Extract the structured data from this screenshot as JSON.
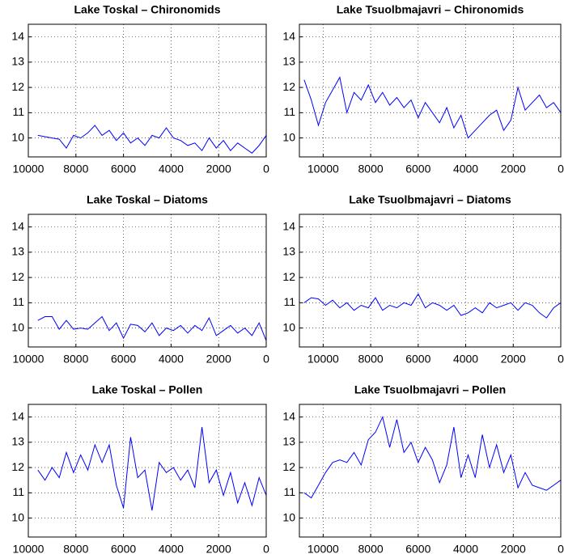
{
  "chart_data": [
    {
      "type": "line",
      "title": "Lake Toskal – Chironomids",
      "x": [
        9600,
        9300,
        9000,
        8700,
        8400,
        8100,
        7800,
        7500,
        7200,
        6900,
        6600,
        6300,
        6000,
        5700,
        5400,
        5100,
        4800,
        4500,
        4200,
        3900,
        3600,
        3300,
        3000,
        2700,
        2400,
        2100,
        1800,
        1500,
        1200,
        900,
        600,
        300,
        0
      ],
      "values": [
        10.1,
        10.05,
        10.0,
        9.95,
        9.6,
        10.1,
        10.0,
        10.2,
        10.5,
        10.1,
        10.3,
        9.9,
        10.2,
        9.8,
        10.0,
        9.7,
        10.1,
        10.0,
        10.4,
        10.0,
        9.9,
        9.7,
        9.8,
        9.5,
        10.0,
        9.6,
        9.9,
        9.5,
        9.8,
        9.6,
        9.4,
        9.7,
        10.1
      ],
      "color": "#0000ff",
      "xlim": [
        10000,
        0
      ],
      "ylim": [
        9.25,
        14.5
      ],
      "xticks": [
        10000,
        8000,
        6000,
        4000,
        2000,
        0
      ],
      "yticks": [
        10,
        11,
        12,
        13,
        14
      ],
      "grid": true
    },
    {
      "type": "line",
      "title": "Lake Tsuolbmajavri – Chironomids",
      "x": [
        10800,
        10500,
        10200,
        9900,
        9600,
        9300,
        9000,
        8700,
        8400,
        8100,
        7800,
        7500,
        7200,
        6900,
        6600,
        6300,
        6000,
        5700,
        5400,
        5100,
        4800,
        4500,
        4200,
        3900,
        3600,
        3300,
        3000,
        2700,
        2400,
        2100,
        1800,
        1500,
        1200,
        900,
        600,
        300,
        0
      ],
      "values": [
        12.3,
        11.5,
        10.5,
        11.4,
        11.9,
        12.4,
        11.0,
        11.8,
        11.5,
        12.1,
        11.4,
        11.8,
        11.3,
        11.6,
        11.2,
        11.5,
        10.8,
        11.4,
        11.0,
        10.6,
        11.2,
        10.4,
        10.9,
        10.0,
        10.3,
        10.6,
        10.9,
        11.1,
        10.3,
        10.7,
        12.0,
        11.1,
        11.4,
        11.7,
        11.2,
        11.4,
        11.0
      ],
      "color": "#0000ff",
      "xlim": [
        11000,
        0
      ],
      "ylim": [
        9.25,
        14.5
      ],
      "xticks": [
        10000,
        8000,
        6000,
        4000,
        2000,
        0
      ],
      "yticks": [
        10,
        11,
        12,
        13,
        14
      ],
      "grid": true
    },
    {
      "type": "line",
      "title": "Lake Toskal – Diatoms",
      "x": [
        9600,
        9300,
        9000,
        8700,
        8400,
        8100,
        7800,
        7500,
        7200,
        6900,
        6600,
        6300,
        6000,
        5700,
        5400,
        5100,
        4800,
        4500,
        4200,
        3900,
        3600,
        3300,
        3000,
        2700,
        2400,
        2100,
        1800,
        1500,
        1200,
        900,
        600,
        300,
        0
      ],
      "values": [
        10.3,
        10.45,
        10.45,
        9.95,
        10.3,
        9.95,
        10.0,
        9.95,
        10.2,
        10.45,
        9.9,
        10.2,
        9.6,
        10.15,
        10.1,
        9.85,
        10.2,
        9.7,
        10.0,
        9.9,
        10.1,
        9.8,
        10.1,
        9.9,
        10.4,
        9.7,
        9.9,
        10.1,
        9.8,
        10.0,
        9.7,
        10.2,
        9.5
      ],
      "color": "#0000ff",
      "xlim": [
        10000,
        0
      ],
      "ylim": [
        9.25,
        14.5
      ],
      "xticks": [
        10000,
        8000,
        6000,
        4000,
        2000,
        0
      ],
      "yticks": [
        10,
        11,
        12,
        13,
        14
      ],
      "grid": true
    },
    {
      "type": "line",
      "title": "Lake Tsuolbmajavri – Diatoms",
      "x": [
        10800,
        10500,
        10200,
        9900,
        9600,
        9300,
        9000,
        8700,
        8400,
        8100,
        7800,
        7500,
        7200,
        6900,
        6600,
        6300,
        6000,
        5700,
        5400,
        5100,
        4800,
        4500,
        4200,
        3900,
        3600,
        3300,
        3000,
        2700,
        2400,
        2100,
        1800,
        1500,
        1200,
        900,
        600,
        300,
        0
      ],
      "values": [
        11.0,
        11.2,
        11.15,
        10.9,
        11.1,
        10.8,
        11.0,
        10.7,
        10.9,
        10.8,
        11.2,
        10.7,
        10.9,
        10.8,
        11.0,
        10.9,
        11.35,
        10.8,
        11.0,
        10.9,
        10.7,
        10.9,
        10.5,
        10.6,
        10.8,
        10.6,
        11.0,
        10.8,
        10.9,
        11.0,
        10.7,
        11.0,
        10.9,
        10.6,
        10.4,
        10.8,
        11.0
      ],
      "color": "#0000ff",
      "xlim": [
        11000,
        0
      ],
      "ylim": [
        9.25,
        14.5
      ],
      "xticks": [
        10000,
        8000,
        6000,
        4000,
        2000,
        0
      ],
      "yticks": [
        10,
        11,
        12,
        13,
        14
      ],
      "grid": true
    },
    {
      "type": "line",
      "title": "Lake Toskal – Pollen",
      "x": [
        9600,
        9300,
        9000,
        8700,
        8400,
        8100,
        7800,
        7500,
        7200,
        6900,
        6600,
        6300,
        6000,
        5700,
        5400,
        5100,
        4800,
        4500,
        4200,
        3900,
        3600,
        3300,
        3000,
        2700,
        2400,
        2100,
        1800,
        1500,
        1200,
        900,
        600,
        300,
        0
      ],
      "values": [
        11.9,
        11.5,
        12.0,
        11.6,
        12.6,
        11.8,
        12.5,
        11.9,
        12.9,
        12.2,
        12.9,
        11.3,
        10.4,
        13.2,
        11.6,
        11.9,
        10.3,
        12.2,
        11.8,
        12.0,
        11.5,
        11.9,
        11.2,
        13.6,
        11.4,
        11.9,
        10.9,
        11.8,
        10.6,
        11.4,
        10.5,
        11.6,
        10.9
      ],
      "color": "#0000ff",
      "xlim": [
        10000,
        0
      ],
      "ylim": [
        9.25,
        14.5
      ],
      "xticks": [
        10000,
        8000,
        6000,
        4000,
        2000,
        0
      ],
      "yticks": [
        10,
        11,
        12,
        13,
        14
      ],
      "grid": true
    },
    {
      "type": "line",
      "title": "Lake Tsuolbmajavri – Pollen",
      "x": [
        10800,
        10500,
        10200,
        9900,
        9600,
        9300,
        9000,
        8700,
        8400,
        8100,
        7800,
        7500,
        7200,
        6900,
        6600,
        6300,
        6000,
        5700,
        5400,
        5100,
        4800,
        4500,
        4200,
        3900,
        3600,
        3300,
        3000,
        2700,
        2400,
        2100,
        1800,
        1500,
        1200,
        900,
        600,
        300,
        0
      ],
      "values": [
        11.0,
        10.8,
        11.3,
        11.8,
        12.2,
        12.3,
        12.2,
        12.6,
        12.1,
        13.1,
        13.4,
        14.0,
        12.8,
        13.9,
        12.6,
        13.0,
        12.2,
        12.8,
        12.3,
        11.4,
        12.1,
        13.6,
        11.6,
        12.5,
        11.6,
        13.3,
        12.0,
        12.9,
        11.8,
        12.5,
        11.2,
        11.8,
        11.3,
        11.2,
        11.1,
        11.3,
        11.5
      ],
      "color": "#0000ff",
      "xlim": [
        11000,
        0
      ],
      "ylim": [
        9.25,
        14.5
      ],
      "xticks": [
        10000,
        8000,
        6000,
        4000,
        2000,
        0
      ],
      "yticks": [
        10,
        11,
        12,
        13,
        14
      ],
      "grid": true
    }
  ]
}
